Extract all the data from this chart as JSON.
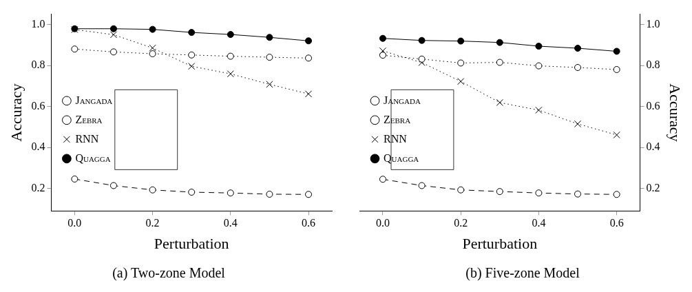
{
  "chart_data": [
    {
      "type": "line",
      "title": "(a) Two-zone Model",
      "xlabel": "Perturbation",
      "ylabel": "Accuracy",
      "x": [
        0,
        0.1,
        0.2,
        0.3,
        0.4,
        0.5,
        0.6
      ],
      "xlim": [
        -0.06,
        0.66
      ],
      "xticks": [
        {
          "value": 0,
          "label": "0.0"
        },
        0.2,
        0.4,
        0.6
      ],
      "ylim": [
        0.09,
        1.05
      ],
      "yticks": [
        0.2,
        0.4,
        0.6,
        0.8,
        {
          "value": 1,
          "label": "1.0"
        }
      ],
      "legend": "left",
      "tick_labels": "xy",
      "series": [
        {
          "name": "Jangada",
          "color": "#000000",
          "marker": "circle",
          "line_style": "dotted",
          "values": [
            0.88,
            0.866,
            0.857,
            0.851,
            0.845,
            0.84,
            0.836
          ]
        },
        {
          "name": "Zebra",
          "color": "#000000",
          "marker": "circle",
          "line_style": "dashed",
          "values": [
            0.246,
            0.214,
            0.193,
            0.182,
            0.178,
            0.172,
            0.171
          ]
        },
        {
          "name": "RNN",
          "color": "#000000",
          "marker": "cross",
          "line_style": "dotted",
          "values": [
            0.975,
            0.95,
            0.885,
            0.796,
            0.759,
            0.708,
            0.661
          ]
        },
        {
          "name": "Quagga",
          "color": "#000000",
          "marker": "circle",
          "line_style": "solid",
          "values": [
            0.979,
            0.979,
            0.976,
            0.961,
            0.951,
            0.937,
            0.92
          ]
        }
      ]
    },
    {
      "type": "line",
      "title": "(b) Five-zone Model",
      "xlabel": "Perturbation",
      "y2label": "Accuracy",
      "x": [
        0,
        0.1,
        0.2,
        0.3,
        0.4,
        0.5,
        0.6
      ],
      "xlim": [
        -0.06,
        0.66
      ],
      "xticks": [
        {
          "value": 0,
          "label": "0.0"
        },
        0.2,
        0.4,
        0.6
      ],
      "y2lim": [
        0.09,
        1.05
      ],
      "y2ticks": [
        0.2,
        0.4,
        0.6,
        0.8,
        {
          "value": 1,
          "label": "1.0"
        }
      ],
      "legend": "left",
      "series": [
        {
          "name": "Jangada",
          "color": "#000000",
          "marker": "circle",
          "line_style": "dotted",
          "axis": "y2",
          "values": [
            0.85,
            0.831,
            0.812,
            0.815,
            0.798,
            0.79,
            0.78
          ]
        },
        {
          "name": "Zebra",
          "color": "#000000",
          "marker": "circle",
          "line_style": "dashed",
          "axis": "y2",
          "values": [
            0.245,
            0.214,
            0.193,
            0.185,
            0.178,
            0.173,
            0.171
          ]
        },
        {
          "name": "RNN",
          "color": "#000000",
          "marker": "cross",
          "line_style": "dotted",
          "axis": "y2",
          "values": [
            0.871,
            0.814,
            0.722,
            0.619,
            0.582,
            0.515,
            0.461
          ]
        },
        {
          "name": "Quagga",
          "color": "#000000",
          "marker": "circle",
          "line_style": "solid",
          "axis": "y2",
          "values": [
            0.932,
            0.922,
            0.919,
            0.912,
            0.894,
            0.884,
            0.869
          ]
        }
      ]
    }
  ]
}
